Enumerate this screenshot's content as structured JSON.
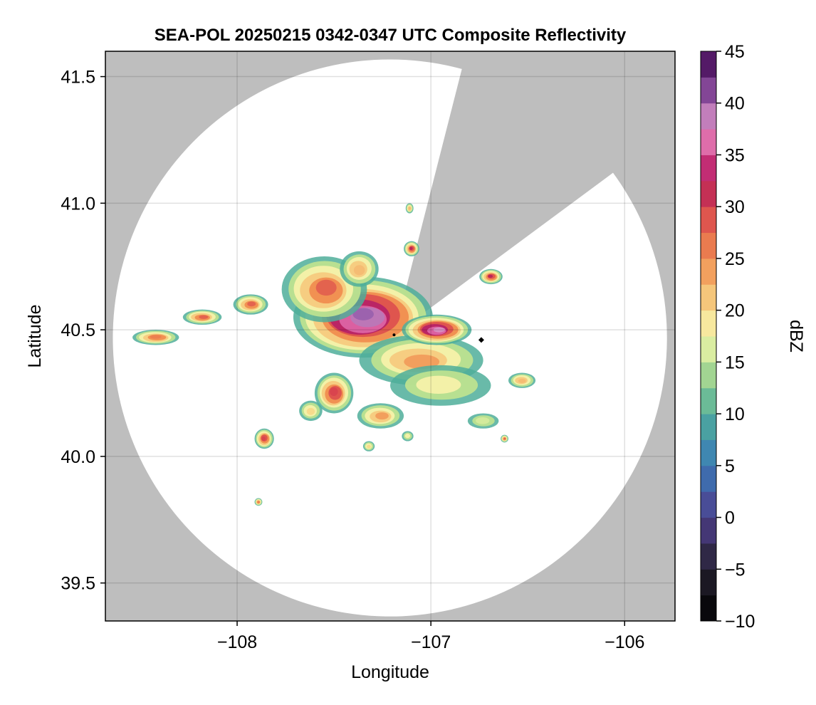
{
  "chart_data": {
    "type": "heatmap",
    "title": "SEA-POL 20250215 0342-0347 UTC Composite Reflectivity",
    "xlabel": "Longitude",
    "ylabel": "Latitude",
    "xlim": [
      -108.68,
      -105.74
    ],
    "ylim": [
      39.35,
      41.6
    ],
    "x_ticks": [
      -108,
      -107,
      -106
    ],
    "x_tick_labels": [
      "−108",
      "−107",
      "−106"
    ],
    "y_ticks": [
      39.5,
      40.0,
      40.5,
      41.0,
      41.5
    ],
    "y_tick_labels": [
      "39.5",
      "40.0",
      "40.5",
      "41.0",
      "41.5"
    ],
    "grid": true,
    "background_color": "#bebebe",
    "coverage_color": "#ffffff",
    "radar": {
      "center_lon": -107.19,
      "center_lat": 40.48,
      "range_lon_deg": 1.43,
      "range_lat_deg": 1.1,
      "blocked_sector": {
        "from_point": [
          -106.84,
          41.53
        ],
        "to_point": [
          -106.06,
          41.12
        ]
      }
    },
    "marker": {
      "lon": -106.74,
      "lat": 40.46
    },
    "colorbar": {
      "label": "dBZ",
      "min": -10,
      "max": 45,
      "ticks": [
        -10,
        -5,
        0,
        5,
        10,
        15,
        20,
        25,
        30,
        35,
        40,
        45
      ],
      "tick_labels": [
        "−10",
        "−5",
        "0",
        "5",
        "10",
        "15",
        "20",
        "25",
        "30",
        "35",
        "40",
        "45"
      ],
      "colormap": "spectral-like",
      "stops": [
        [
          -10,
          "#000000"
        ],
        [
          -5,
          "#24202e"
        ],
        [
          0,
          "#4e3e8c"
        ],
        [
          5,
          "#3a7ab8"
        ],
        [
          10,
          "#4fae9a"
        ],
        [
          15,
          "#bde28f"
        ],
        [
          17.5,
          "#f6f7b2"
        ],
        [
          20,
          "#f7d98a"
        ],
        [
          25,
          "#f08d4f"
        ],
        [
          30,
          "#d8434e"
        ],
        [
          32.5,
          "#b01c5c"
        ],
        [
          35,
          "#d33e8c"
        ],
        [
          37.5,
          "#e99bc8"
        ],
        [
          40,
          "#9a61ad"
        ],
        [
          42.5,
          "#6b2a7f"
        ],
        [
          45,
          "#3c0a4e"
        ]
      ]
    },
    "echoes": [
      {
        "lon": -107.35,
        "lat": 40.55,
        "rlon": 0.36,
        "rlat": 0.16,
        "peak_dbz": 40
      },
      {
        "lon": -107.55,
        "lat": 40.66,
        "rlon": 0.22,
        "rlat": 0.13,
        "peak_dbz": 28
      },
      {
        "lon": -107.05,
        "lat": 40.38,
        "rlon": 0.32,
        "rlat": 0.1,
        "peak_dbz": 24
      },
      {
        "lon": -106.97,
        "lat": 40.5,
        "rlon": 0.18,
        "rlat": 0.06,
        "peak_dbz": 38
      },
      {
        "lon": -106.95,
        "lat": 40.28,
        "rlon": 0.26,
        "rlat": 0.08,
        "peak_dbz": 18
      },
      {
        "lon": -107.5,
        "lat": 40.25,
        "rlon": 0.1,
        "rlat": 0.08,
        "peak_dbz": 30
      },
      {
        "lon": -107.26,
        "lat": 40.16,
        "rlon": 0.12,
        "rlat": 0.05,
        "peak_dbz": 24
      },
      {
        "lon": -107.93,
        "lat": 40.6,
        "rlon": 0.09,
        "rlat": 0.04,
        "peak_dbz": 28
      },
      {
        "lon": -108.18,
        "lat": 40.55,
        "rlon": 0.1,
        "rlat": 0.03,
        "peak_dbz": 28
      },
      {
        "lon": -108.42,
        "lat": 40.47,
        "rlon": 0.12,
        "rlat": 0.03,
        "peak_dbz": 26
      },
      {
        "lon": -106.69,
        "lat": 40.71,
        "rlon": 0.06,
        "rlat": 0.03,
        "peak_dbz": 32
      },
      {
        "lon": -106.53,
        "lat": 40.3,
        "rlon": 0.07,
        "rlat": 0.03,
        "peak_dbz": 22
      },
      {
        "lon": -107.86,
        "lat": 40.07,
        "rlon": 0.05,
        "rlat": 0.04,
        "peak_dbz": 30
      },
      {
        "lon": -107.1,
        "lat": 40.82,
        "rlon": 0.04,
        "rlat": 0.03,
        "peak_dbz": 32
      },
      {
        "lon": -107.37,
        "lat": 40.74,
        "rlon": 0.1,
        "rlat": 0.07,
        "peak_dbz": 22
      },
      {
        "lon": -107.62,
        "lat": 40.18,
        "rlon": 0.06,
        "rlat": 0.04,
        "peak_dbz": 20
      },
      {
        "lon": -106.73,
        "lat": 40.14,
        "rlon": 0.08,
        "rlat": 0.03,
        "peak_dbz": 16
      },
      {
        "lon": -107.89,
        "lat": 39.82,
        "rlon": 0.02,
        "rlat": 0.015,
        "peak_dbz": 26
      },
      {
        "lon": -107.11,
        "lat": 40.98,
        "rlon": 0.02,
        "rlat": 0.02,
        "peak_dbz": 22
      },
      {
        "lon": -106.62,
        "lat": 40.07,
        "rlon": 0.02,
        "rlat": 0.015,
        "peak_dbz": 28
      },
      {
        "lon": -107.12,
        "lat": 40.08,
        "rlon": 0.03,
        "rlat": 0.02,
        "peak_dbz": 18
      },
      {
        "lon": -107.32,
        "lat": 40.04,
        "rlon": 0.03,
        "rlat": 0.02,
        "peak_dbz": 20
      }
    ]
  }
}
